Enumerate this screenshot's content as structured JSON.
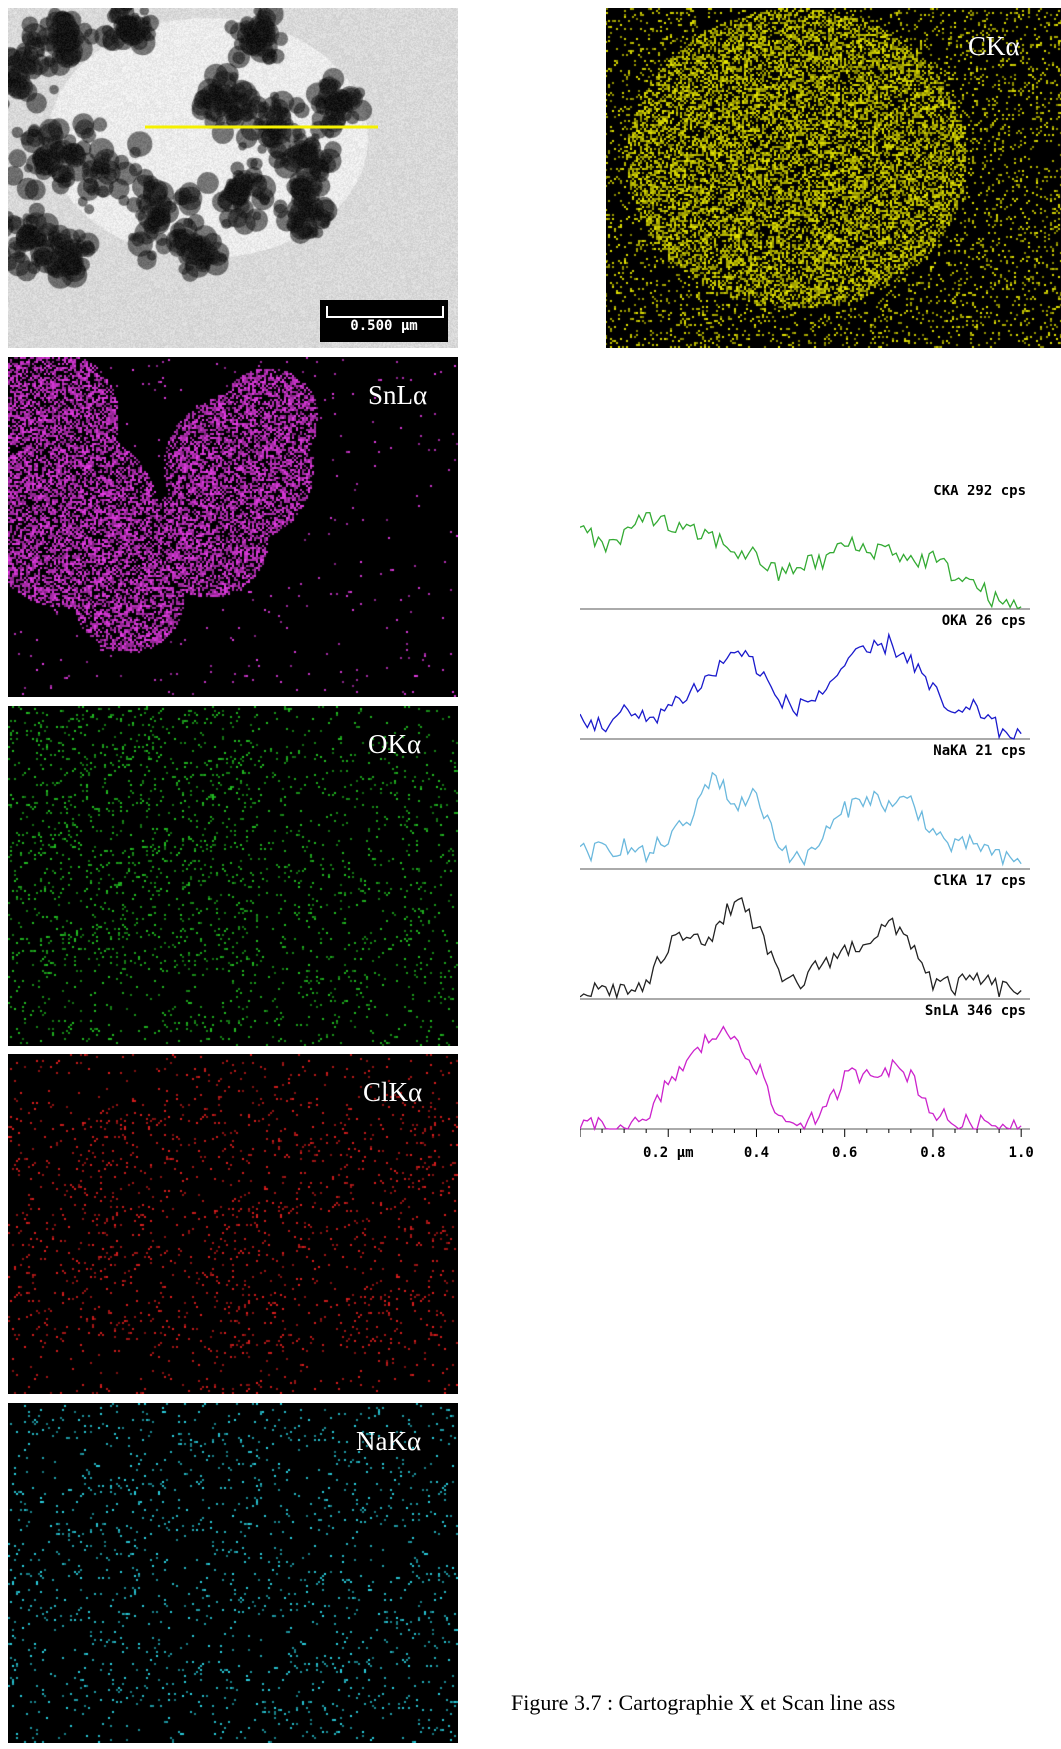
{
  "figure": {
    "caption": "Figure 3.7 : Cartographie X et Scan line ass"
  },
  "tem_image": {
    "scale_bar_label": "0.500 µm"
  },
  "maps": [
    {
      "id": "C",
      "label": "CKα",
      "color": "#e6e600"
    },
    {
      "id": "Sn",
      "label": "SnLα",
      "color": "#e63be6"
    },
    {
      "id": "O",
      "label": "OKα",
      "color": "#22c222"
    },
    {
      "id": "Cl",
      "label": "ClKα",
      "color": "#e21e1e"
    },
    {
      "id": "Na",
      "label": "NaKα",
      "color": "#2ad6e6"
    }
  ],
  "chart_data": {
    "type": "line",
    "x_axis": {
      "unit": "µm",
      "ticks": [
        "0.2 µm",
        "0.4",
        "0.6",
        "0.8",
        "1.0"
      ],
      "tick_values": [
        0.2,
        0.4,
        0.6,
        0.8,
        1.0
      ],
      "range": [
        0.0,
        1.02
      ]
    },
    "series": [
      {
        "name": "CKA 292 cps",
        "color": "#33aa33",
        "x": [
          0.0,
          0.05,
          0.1,
          0.15,
          0.2,
          0.25,
          0.3,
          0.35,
          0.4,
          0.45,
          0.5,
          0.55,
          0.6,
          0.65,
          0.7,
          0.75,
          0.8,
          0.85,
          0.9,
          0.95,
          1.0
        ],
        "y": [
          0.85,
          0.58,
          0.66,
          0.92,
          0.78,
          0.72,
          0.68,
          0.55,
          0.5,
          0.32,
          0.42,
          0.45,
          0.62,
          0.55,
          0.58,
          0.45,
          0.48,
          0.32,
          0.22,
          0.05,
          0.02
        ]
      },
      {
        "name": "OKA 26 cps",
        "color": "#1a1acc",
        "x": [
          0.0,
          0.05,
          0.1,
          0.15,
          0.2,
          0.25,
          0.3,
          0.35,
          0.4,
          0.45,
          0.5,
          0.55,
          0.6,
          0.65,
          0.7,
          0.75,
          0.8,
          0.85,
          0.9,
          0.95,
          1.0
        ],
        "y": [
          0.2,
          0.12,
          0.25,
          0.18,
          0.3,
          0.45,
          0.6,
          0.85,
          0.7,
          0.35,
          0.3,
          0.45,
          0.7,
          0.82,
          0.9,
          0.75,
          0.45,
          0.2,
          0.3,
          0.08,
          0.05
        ]
      },
      {
        "name": "NaKA 21 cps",
        "color": "#6ab8dd",
        "x": [
          0.0,
          0.05,
          0.1,
          0.15,
          0.2,
          0.25,
          0.3,
          0.35,
          0.4,
          0.45,
          0.5,
          0.55,
          0.6,
          0.65,
          0.7,
          0.75,
          0.8,
          0.85,
          0.9,
          0.95,
          1.0
        ],
        "y": [
          0.15,
          0.18,
          0.22,
          0.12,
          0.3,
          0.45,
          0.92,
          0.6,
          0.7,
          0.25,
          0.05,
          0.3,
          0.55,
          0.7,
          0.6,
          0.65,
          0.35,
          0.2,
          0.25,
          0.1,
          0.05
        ]
      },
      {
        "name": "ClKA 17 cps",
        "color": "#222222",
        "x": [
          0.0,
          0.05,
          0.1,
          0.15,
          0.2,
          0.25,
          0.3,
          0.35,
          0.4,
          0.45,
          0.5,
          0.55,
          0.6,
          0.65,
          0.7,
          0.75,
          0.8,
          0.85,
          0.9,
          0.95,
          1.0
        ],
        "y": [
          0.05,
          0.1,
          0.08,
          0.12,
          0.5,
          0.65,
          0.55,
          0.95,
          0.7,
          0.2,
          0.15,
          0.35,
          0.45,
          0.55,
          0.7,
          0.55,
          0.15,
          0.12,
          0.2,
          0.1,
          0.08
        ]
      },
      {
        "name": "SnLA 346 cps",
        "color": "#cc22cc",
        "x": [
          0.0,
          0.05,
          0.1,
          0.15,
          0.2,
          0.25,
          0.3,
          0.35,
          0.4,
          0.45,
          0.5,
          0.55,
          0.6,
          0.65,
          0.7,
          0.75,
          0.8,
          0.85,
          0.9,
          0.95,
          1.0
        ],
        "y": [
          0.02,
          0.02,
          0.03,
          0.04,
          0.45,
          0.65,
          0.9,
          0.88,
          0.6,
          0.1,
          0.06,
          0.12,
          0.48,
          0.55,
          0.58,
          0.52,
          0.15,
          0.06,
          0.04,
          0.05,
          0.03
        ]
      }
    ]
  }
}
